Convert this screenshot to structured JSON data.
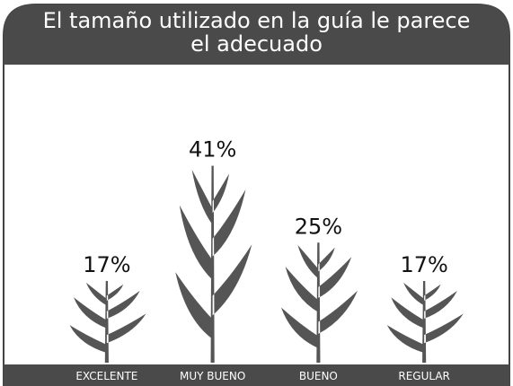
{
  "chart_data": {
    "type": "pictograph",
    "title": "El tamaño utilizado en la guía le parece el adecuado",
    "categories": [
      "EXCELENTE",
      "MUY BUENO",
      "BUENO",
      "REGULAR"
    ],
    "values": [
      17,
      41,
      25,
      17
    ],
    "value_labels": [
      "17%",
      "41%",
      "25%",
      "17%"
    ],
    "color": "#555555"
  }
}
